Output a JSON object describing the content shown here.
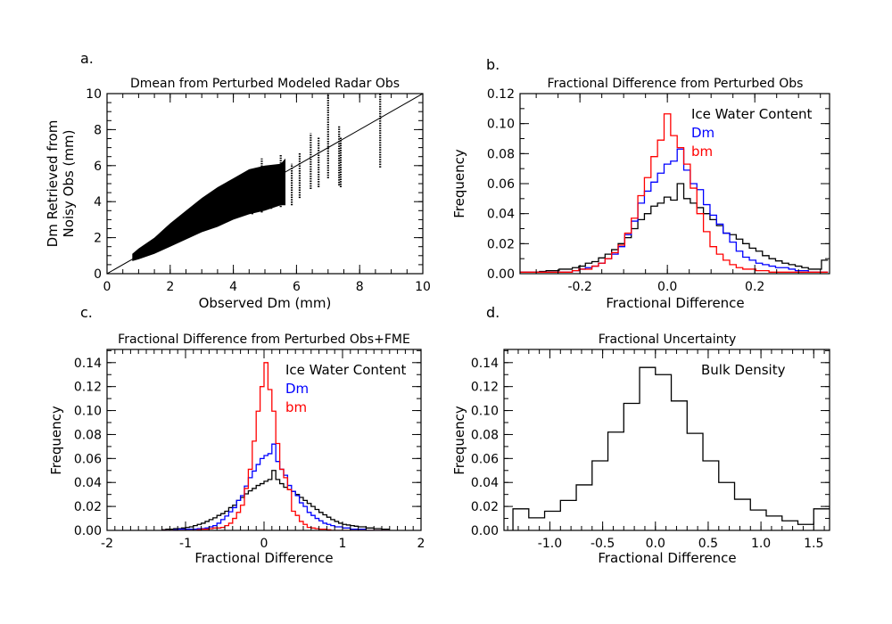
{
  "chart_data": [
    {
      "id": "a",
      "type": "scatter",
      "panel_label": "a.",
      "title": "Dmean from Perturbed Modeled Radar Obs",
      "xlabel": "Observed Dm (mm)",
      "ylabel_lines": [
        "Dm Retrieved from",
        "Noisy Obs (mm)"
      ],
      "xlim": [
        0,
        10
      ],
      "ylim": [
        0,
        10
      ],
      "xticks": [
        0,
        2,
        4,
        6,
        8,
        10
      ],
      "yticks": [
        0,
        2,
        4,
        6,
        8,
        10
      ],
      "xtick_labels": [
        "0",
        "2",
        "4",
        "6",
        "8",
        "10"
      ],
      "ytick_labels": [
        "0",
        "2",
        "4",
        "6",
        "8",
        "10"
      ],
      "reference_line": {
        "x": [
          0,
          10
        ],
        "y": [
          0,
          10
        ]
      },
      "dense_envelope": {
        "x": [
          0.8,
          1.0,
          1.5,
          2.0,
          2.5,
          3.0,
          3.5,
          4.0,
          4.5,
          5.0,
          5.5,
          5.65
        ],
        "ymin": [
          0.7,
          0.8,
          1.1,
          1.5,
          1.9,
          2.3,
          2.6,
          3.0,
          3.3,
          3.5,
          3.8,
          3.8
        ],
        "ymax": [
          1.1,
          1.4,
          2.0,
          2.8,
          3.5,
          4.2,
          4.8,
          5.3,
          5.8,
          6.0,
          6.1,
          6.4
        ]
      },
      "point_columns": [
        {
          "x": 4.6,
          "ymin": 3.3,
          "ymax": 5.5
        },
        {
          "x": 4.9,
          "ymin": 3.4,
          "ymax": 6.4
        },
        {
          "x": 5.2,
          "ymin": 3.6,
          "ymax": 6.0
        },
        {
          "x": 5.5,
          "ymin": 3.7,
          "ymax": 6.6
        },
        {
          "x": 5.85,
          "ymin": 3.8,
          "ymax": 6.1
        },
        {
          "x": 6.1,
          "ymin": 4.2,
          "ymax": 6.7
        },
        {
          "x": 6.45,
          "ymin": 4.7,
          "ymax": 7.8
        },
        {
          "x": 6.7,
          "ymin": 4.8,
          "ymax": 7.6
        },
        {
          "x": 7.0,
          "ymin": 5.3,
          "ymax": 10.0
        },
        {
          "x": 7.35,
          "ymin": 4.9,
          "ymax": 8.2
        },
        {
          "x": 7.4,
          "ymin": 4.8,
          "ymax": 7.6
        },
        {
          "x": 8.65,
          "ymin": 5.9,
          "ymax": 10.0
        }
      ]
    },
    {
      "id": "b",
      "type": "histogram",
      "panel_label": "b.",
      "title": "Fractional Difference from Perturbed Obs",
      "xlabel": "Fractional Difference",
      "ylabel": "Frequency",
      "xlim": [
        -0.337,
        0.371
      ],
      "ylim": [
        0,
        0.12
      ],
      "xticks": [
        -0.2,
        0.0,
        0.2
      ],
      "xtick_labels": [
        "-0.2",
        "0.0",
        "0.2"
      ],
      "yticks": [
        0,
        0.02,
        0.04,
        0.06,
        0.08,
        0.1,
        0.12
      ],
      "ytick_labels": [
        "0.00",
        "0.02",
        "0.04",
        "0.06",
        "0.08",
        "0.10",
        "0.12"
      ],
      "bin_start": -0.3375,
      "bin_width": 0.015,
      "series": [
        {
          "name": "Ice Water Content",
          "color": "#000000",
          "values": [
            0.001,
            0.001,
            0.001,
            0.0015,
            0.002,
            0.002,
            0.003,
            0.003,
            0.004,
            0.005,
            0.007,
            0.008,
            0.0105,
            0.013,
            0.016,
            0.02,
            0.024,
            0.03,
            0.036,
            0.04,
            0.045,
            0.047,
            0.051,
            0.049,
            0.06,
            0.05,
            0.047,
            0.044,
            0.04,
            0.036,
            0.032,
            0.027,
            0.026,
            0.023,
            0.02,
            0.017,
            0.015,
            0.012,
            0.01,
            0.0085,
            0.007,
            0.006,
            0.005,
            0.004,
            0.003,
            0.003,
            0.009
          ]
        },
        {
          "name": "Dm",
          "color": "#0000ff",
          "values": [
            0.001,
            0.001,
            0.001,
            0.001,
            0.001,
            0.001,
            0.001,
            0.001,
            0.002,
            0.003,
            0.004,
            0.005,
            0.007,
            0.01,
            0.013,
            0.018,
            0.026,
            0.035,
            0.047,
            0.055,
            0.061,
            0.067,
            0.073,
            0.075,
            0.083,
            0.069,
            0.06,
            0.056,
            0.046,
            0.039,
            0.033,
            0.027,
            0.021,
            0.015,
            0.011,
            0.009,
            0.007,
            0.006,
            0.005,
            0.004,
            0.004,
            0.003,
            0.002,
            0.002,
            0.001,
            0.001,
            0.001
          ]
        },
        {
          "name": "bm",
          "color": "#ff0000",
          "values": [
            0.001,
            0.001,
            0.001,
            0.001,
            0.001,
            0.001,
            0.001,
            0.001,
            0.002,
            0.003,
            0.003,
            0.005,
            0.007,
            0.01,
            0.014,
            0.019,
            0.027,
            0.037,
            0.052,
            0.064,
            0.078,
            0.089,
            0.1065,
            0.092,
            0.084,
            0.073,
            0.057,
            0.04,
            0.028,
            0.018,
            0.013,
            0.009,
            0.006,
            0.004,
            0.003,
            0.003,
            0.002,
            0.002,
            0.001,
            0.001,
            0.001,
            0.001,
            0.001,
            0.001,
            0.001,
            0.001,
            0.001
          ]
        }
      ]
    },
    {
      "id": "c",
      "type": "histogram",
      "panel_label": "c.",
      "title": "Fractional Difference from Perturbed Obs+FME",
      "xlabel": "Fractional Difference",
      "ylabel": "Frequency",
      "xlim": [
        -2,
        2
      ],
      "ylim": [
        0,
        0.151
      ],
      "xticks": [
        -2,
        -1,
        0,
        1,
        2
      ],
      "xtick_labels": [
        "-2",
        "-1",
        "0",
        "1",
        "2"
      ],
      "yticks": [
        0,
        0.02,
        0.04,
        0.06,
        0.08,
        0.1,
        0.12,
        0.14
      ],
      "ytick_labels": [
        "0.00",
        "0.02",
        "0.04",
        "0.06",
        "0.08",
        "0.10",
        "0.12",
        "0.14"
      ],
      "bin_start": -1.3,
      "bin_width": 0.05,
      "series": [
        {
          "name": "Ice Water Content",
          "color": "#000000",
          "values": [
            0.0005,
            0.001,
            0.001,
            0.0015,
            0.0015,
            0.002,
            0.0025,
            0.003,
            0.004,
            0.005,
            0.006,
            0.0075,
            0.009,
            0.0105,
            0.0125,
            0.014,
            0.016,
            0.019,
            0.021,
            0.025,
            0.0275,
            0.0305,
            0.033,
            0.035,
            0.0375,
            0.039,
            0.041,
            0.0425,
            0.05,
            0.0425,
            0.039,
            0.036,
            0.034,
            0.0325,
            0.03,
            0.0275,
            0.025,
            0.0225,
            0.02,
            0.0175,
            0.015,
            0.013,
            0.011,
            0.009,
            0.0075,
            0.006,
            0.005,
            0.0045,
            0.004,
            0.0035,
            0.003,
            0.003,
            0.002,
            0.002,
            0.0015,
            0.0015,
            0.001,
            0.001
          ]
        },
        {
          "name": "Dm",
          "color": "#0000ff",
          "values": [
            0,
            0,
            0,
            0.0005,
            0.001,
            0.001,
            0.001,
            0.001,
            0.001,
            0.0015,
            0.0015,
            0.002,
            0.003,
            0.004,
            0.006,
            0.009,
            0.012,
            0.0155,
            0.019,
            0.025,
            0.029,
            0.037,
            0.044,
            0.0495,
            0.055,
            0.06,
            0.0625,
            0.064,
            0.072,
            0.0575,
            0.051,
            0.046,
            0.0375,
            0.0325,
            0.029,
            0.023,
            0.02,
            0.015,
            0.0125,
            0.01,
            0.008,
            0.006,
            0.005,
            0.004,
            0.003,
            0.003,
            0.002,
            0.002,
            0.001,
            0.001,
            0.001,
            0.001,
            0,
            0,
            0,
            0,
            0,
            0
          ]
        },
        {
          "name": "bm",
          "color": "#ff0000",
          "values": [
            0,
            0,
            0,
            0,
            0,
            0,
            0,
            0,
            0,
            0.0005,
            0.001,
            0.001,
            0.0015,
            0.002,
            0.002,
            0.0025,
            0.004,
            0.006,
            0.01,
            0.015,
            0.021,
            0.035,
            0.051,
            0.0745,
            0.0995,
            0.12,
            0.14,
            0.1175,
            0.0995,
            0.0725,
            0.051,
            0.044,
            0.034,
            0.016,
            0.0125,
            0.0075,
            0.005,
            0.0025,
            0.002,
            0.0015,
            0.001,
            0.001,
            0.0005,
            0,
            0,
            0,
            0,
            0,
            0,
            0,
            0,
            0,
            0,
            0,
            0,
            0,
            0,
            0
          ]
        }
      ]
    },
    {
      "id": "d",
      "type": "histogram",
      "panel_label": "d.",
      "title": "Fractional Uncertainty",
      "xlabel": "Fractional Difference",
      "ylabel": "Frequency",
      "xlim": [
        -1.435,
        1.65
      ],
      "ylim": [
        0,
        0.151
      ],
      "xticks": [
        -1.0,
        -0.5,
        0.0,
        0.5,
        1.0,
        1.5
      ],
      "xtick_labels": [
        "-1.0",
        "-0.5",
        "0.0",
        "0.5",
        "1.0",
        "1.5"
      ],
      "yticks": [
        0,
        0.02,
        0.04,
        0.06,
        0.08,
        0.1,
        0.12,
        0.14
      ],
      "ytick_labels": [
        "0.00",
        "0.02",
        "0.04",
        "0.06",
        "0.08",
        "0.10",
        "0.12",
        "0.14"
      ],
      "bin_start": -1.35,
      "bin_width": 0.15,
      "series": [
        {
          "name": "Bulk Density",
          "color": "#000000",
          "values": [
            0.018,
            0.0105,
            0.016,
            0.025,
            0.038,
            0.058,
            0.082,
            0.106,
            0.136,
            0.13,
            0.108,
            0.081,
            0.058,
            0.04,
            0.026,
            0.017,
            0.012,
            0.008,
            0.005,
            0.018
          ]
        }
      ]
    }
  ]
}
